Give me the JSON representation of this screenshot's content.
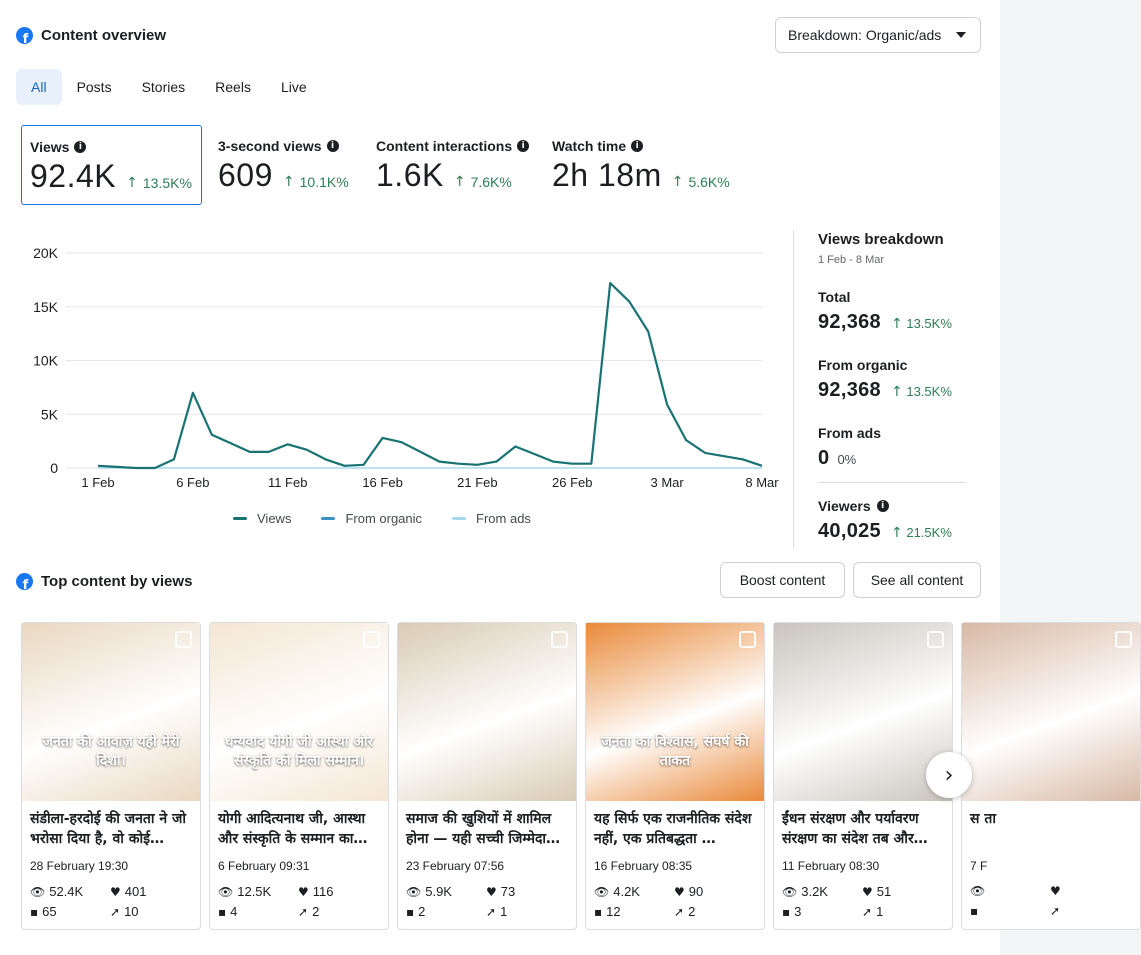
{
  "header": {
    "title": "Content overview",
    "icon": "facebook-icon"
  },
  "breakdown_dropdown": {
    "label": "Breakdown: Organic/ads"
  },
  "tabs": [
    {
      "label": "All",
      "active": true
    },
    {
      "label": "Posts",
      "active": false
    },
    {
      "label": "Stories",
      "active": false
    },
    {
      "label": "Reels",
      "active": false
    },
    {
      "label": "Live",
      "active": false
    }
  ],
  "metrics": [
    {
      "label": "Views",
      "value": "92.4K",
      "delta": "13.5K%",
      "selected": true
    },
    {
      "label": "3-second views",
      "value": "609",
      "delta": "10.1K%",
      "selected": false
    },
    {
      "label": "Content interactions",
      "value": "1.6K",
      "delta": "7.6K%",
      "selected": false
    },
    {
      "label": "Watch time",
      "value": "2h 18m",
      "delta": "5.6K%",
      "selected": false
    }
  ],
  "chart_data": {
    "type": "line",
    "x": [
      "1 Feb",
      "2 Feb",
      "3 Feb",
      "4 Feb",
      "5 Feb",
      "6 Feb",
      "7 Feb",
      "8 Feb",
      "9 Feb",
      "10 Feb",
      "11 Feb",
      "12 Feb",
      "13 Feb",
      "14 Feb",
      "15 Feb",
      "16 Feb",
      "17 Feb",
      "18 Feb",
      "19 Feb",
      "20 Feb",
      "21 Feb",
      "22 Feb",
      "23 Feb",
      "24 Feb",
      "25 Feb",
      "26 Feb",
      "27 Feb",
      "28 Feb",
      "1 Mar",
      "2 Mar",
      "3 Mar",
      "4 Mar",
      "5 Mar",
      "6 Mar",
      "7 Mar",
      "8 Mar"
    ],
    "x_tick_labels": [
      "1 Feb",
      "6 Feb",
      "11 Feb",
      "16 Feb",
      "21 Feb",
      "26 Feb",
      "3 Mar",
      "8 Mar"
    ],
    "x_tick_index": [
      0,
      5,
      10,
      15,
      20,
      25,
      30,
      35
    ],
    "series": [
      {
        "name": "Views",
        "color": "#1a7373",
        "values": [
          200,
          100,
          0,
          0,
          800,
          7000,
          3100,
          2300,
          1500,
          1500,
          2200,
          1700,
          800,
          200,
          300,
          2800,
          2400,
          1500,
          600,
          400,
          300,
          600,
          2000,
          1300,
          600,
          400,
          400,
          17200,
          15500,
          12700,
          5900,
          2600,
          1400,
          1100,
          800,
          200
        ]
      },
      {
        "name": "From organic",
        "color": "#3c8fc4",
        "values": [
          200,
          100,
          0,
          0,
          800,
          7000,
          3100,
          2300,
          1500,
          1500,
          2200,
          1700,
          800,
          200,
          300,
          2800,
          2400,
          1500,
          600,
          400,
          300,
          600,
          2000,
          1300,
          600,
          400,
          400,
          17200,
          15500,
          12700,
          5900,
          2600,
          1400,
          1100,
          800,
          200
        ]
      },
      {
        "name": "From ads",
        "color": "#a8d8ee",
        "values": [
          0,
          0,
          0,
          0,
          0,
          0,
          0,
          0,
          0,
          0,
          0,
          0,
          0,
          0,
          0,
          0,
          0,
          0,
          0,
          0,
          0,
          0,
          0,
          0,
          0,
          0,
          0,
          0,
          0,
          0,
          0,
          0,
          0,
          0,
          0,
          0
        ]
      }
    ],
    "y_ticks": [
      "0",
      "5K",
      "10K",
      "15K",
      "20K"
    ],
    "ylim": [
      0,
      20000
    ],
    "grid": true,
    "legend": "bottom"
  },
  "breakdown_panel": {
    "title": "Views breakdown",
    "date_range": "1 Feb - 8 Mar",
    "total": {
      "label": "Total",
      "value": "92,368",
      "delta": "13.5K%"
    },
    "organic": {
      "label": "From organic",
      "value": "92,368",
      "delta": "13.5K%"
    },
    "ads": {
      "label": "From ads",
      "value": "0",
      "delta": "0%"
    },
    "viewers": {
      "label": "Viewers",
      "value": "40,025",
      "delta": "21.5K%"
    }
  },
  "top_content": {
    "title": "Top content by views",
    "boost_label": "Boost content",
    "see_all_label": "See all content",
    "cards": [
      {
        "title": "संडीला-हरदोई की जनता ने जो भरोसा दिया है, वो कोई…",
        "date": "28 February 19:30",
        "views": "52.4K",
        "likes": "401",
        "comments": "65",
        "shares": "10",
        "thumb_text": "जनता की आवाज़ यही मेरी दिशा।",
        "thumb_bg": "#e9d8c0"
      },
      {
        "title": "योगी आदित्यनाथ जी, आस्था और संस्कृति के सम्मान का…",
        "date": "6 February 09:31",
        "views": "12.5K",
        "likes": "116",
        "comments": "4",
        "shares": "2",
        "thumb_text": "धन्यवाद योगी जी आस्था और संस्कृति को मिला सम्मान।",
        "thumb_bg": "#f4e6d3"
      },
      {
        "title": "समाज की खुशियों में शामिल होना — यही सच्ची जिम्मेदा…",
        "date": "23 February 07:56",
        "views": "5.9K",
        "likes": "73",
        "comments": "2",
        "shares": "1",
        "thumb_text": "",
        "thumb_bg": "#d9cbb4"
      },
      {
        "title": "यह सिर्फ एक राजनीतिक संदेश नहीं, एक प्रतिबद्धता …",
        "date": "16 February 08:35",
        "views": "4.2K",
        "likes": "90",
        "comments": "12",
        "shares": "2",
        "thumb_text": "जनता का विश्वास, संघर्ष की ताकत",
        "thumb_bg": "#e98a3a"
      },
      {
        "title": "ईंधन संरक्षण और पर्यावरण संरक्षण का संदेश तब और…",
        "date": "11 February 08:30",
        "views": "3.2K",
        "likes": "51",
        "comments": "3",
        "shares": "1",
        "thumb_text": "",
        "thumb_bg": "#c9c5bd"
      },
      {
        "title": "स ता",
        "date": "7 F",
        "views": "",
        "likes": "",
        "comments": "",
        "shares": "",
        "thumb_text": "",
        "thumb_bg": "#d8b9a5"
      }
    ]
  }
}
